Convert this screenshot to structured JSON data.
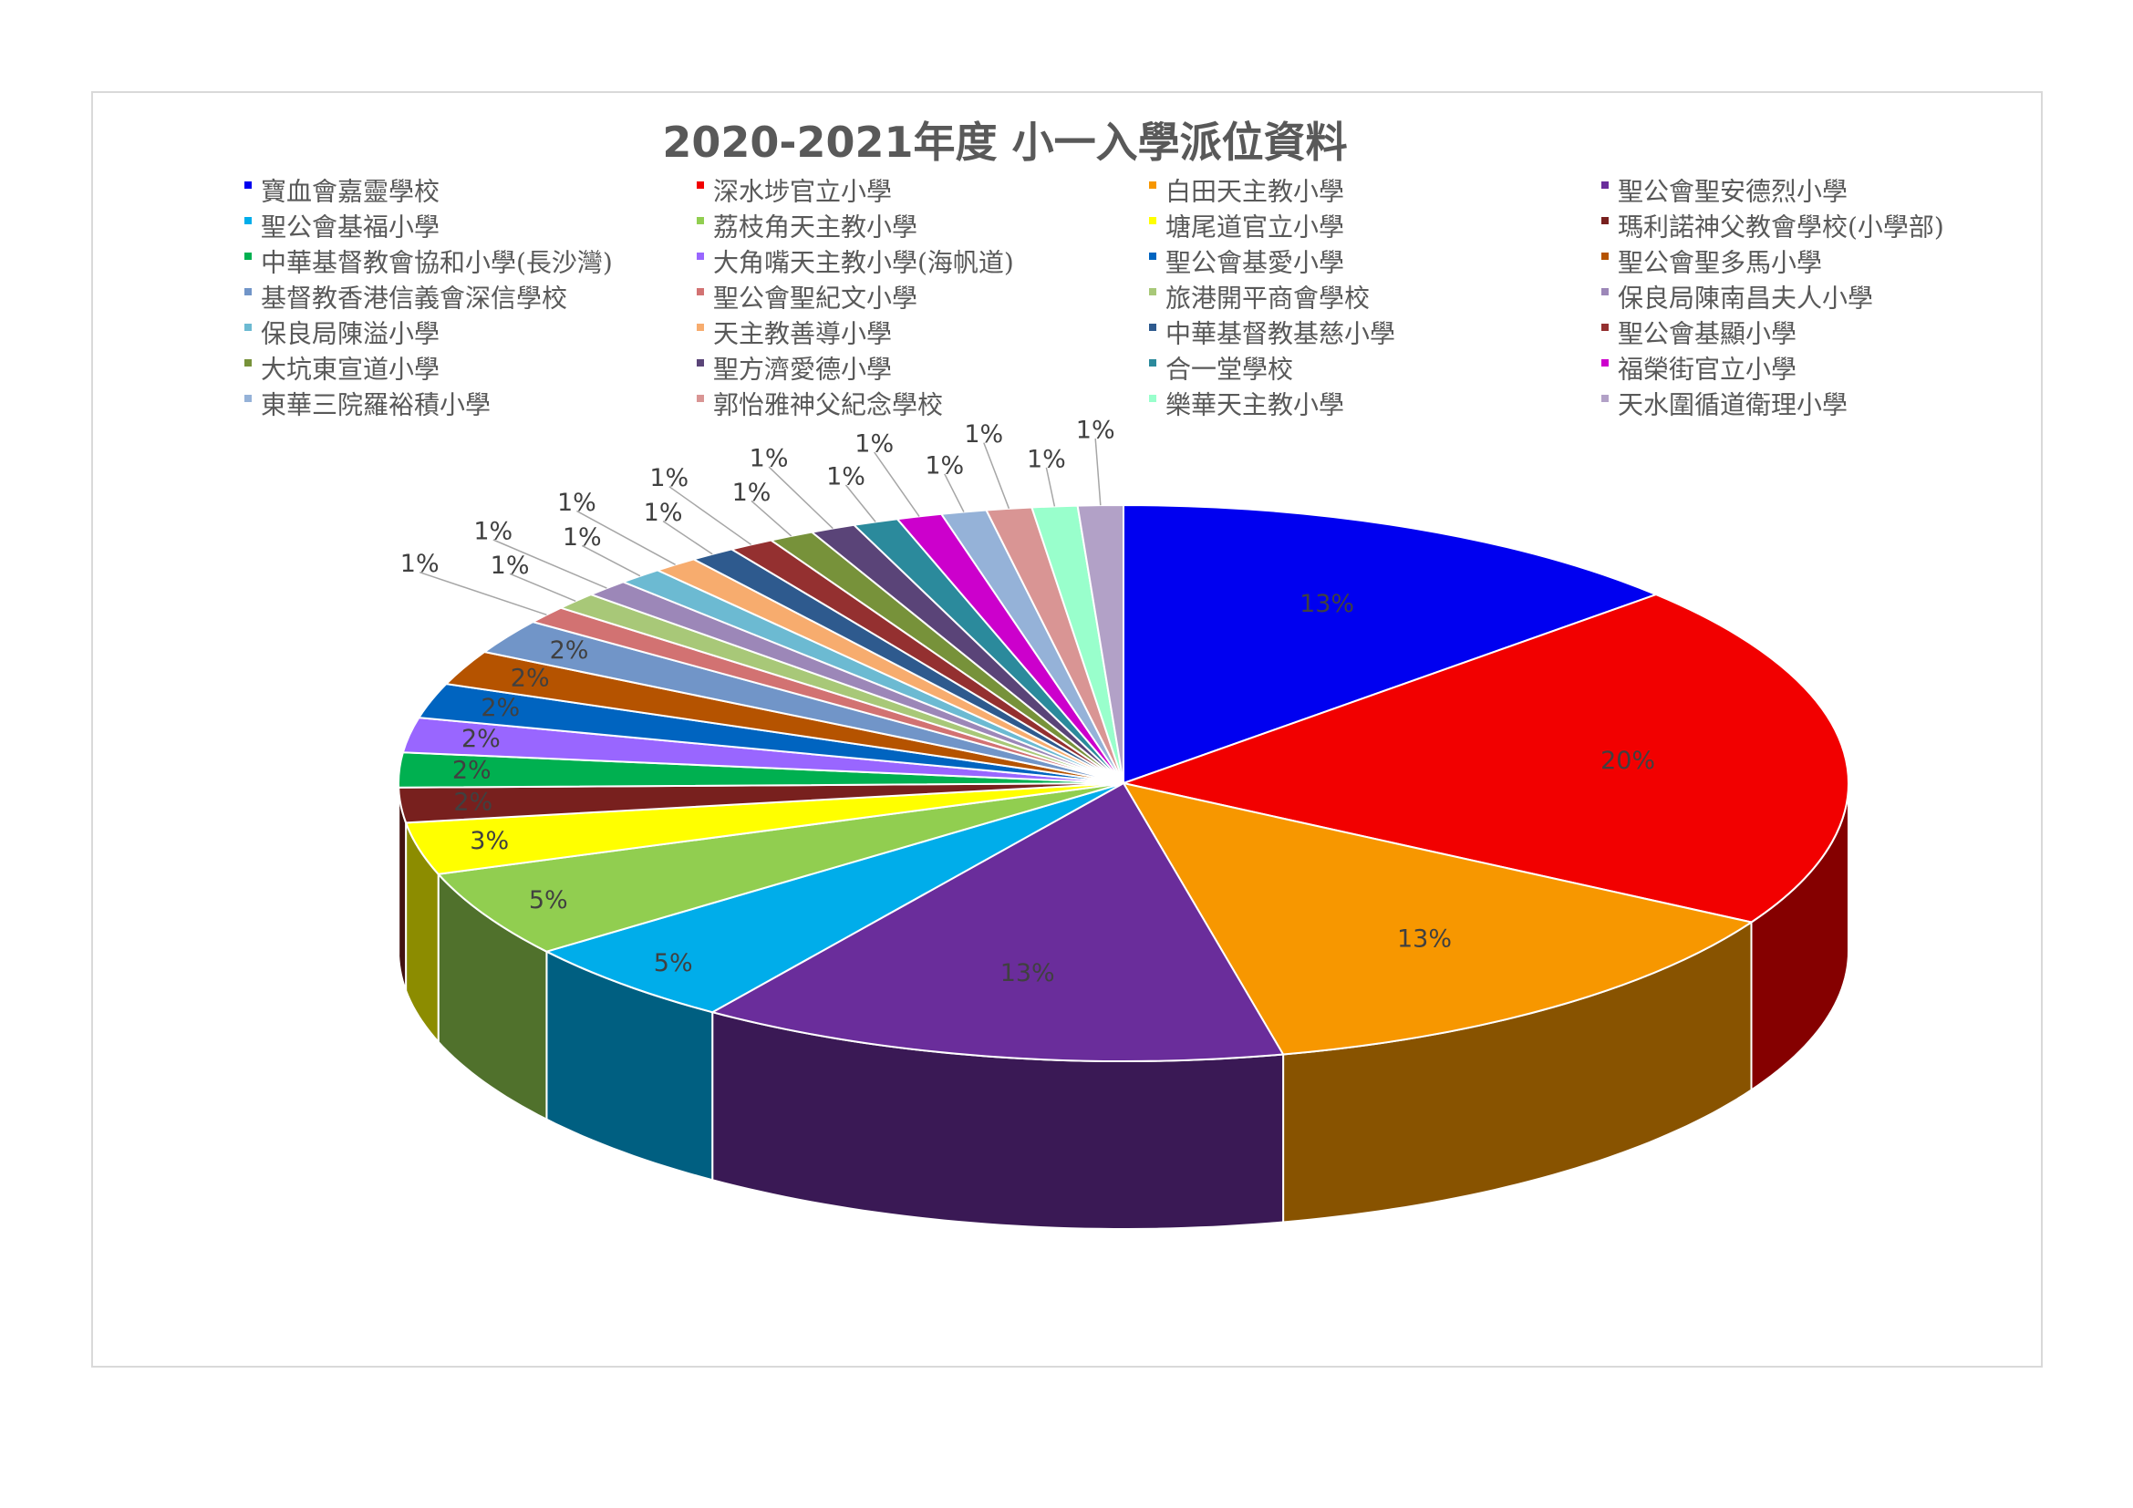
{
  "chart_data": {
    "type": "pie",
    "title": "2020-2021年度 小一入學派位資料",
    "legend_position": "top",
    "labels_shown": "percent",
    "slices": [
      {
        "name": "寶血會嘉靈學校",
        "value": 13,
        "label": "13%",
        "color": "#0000f0"
      },
      {
        "name": "深水埗官立小學",
        "value": 20,
        "label": "20%",
        "color": "#f20000"
      },
      {
        "name": "白田天主教小學",
        "value": 13,
        "label": "13%",
        "color": "#f79700"
      },
      {
        "name": "聖公會聖安德烈小學",
        "value": 13,
        "label": "13%",
        "color": "#6a2d9b"
      },
      {
        "name": "聖公會基福小學",
        "value": 5,
        "label": "5%",
        "color": "#00adea"
      },
      {
        "name": "荔枝角天主教小學",
        "value": 5,
        "label": "5%",
        "color": "#91ce50"
      },
      {
        "name": "塘尾道官立小學",
        "value": 3,
        "label": "3%",
        "color": "#ffff00"
      },
      {
        "name": "瑪利諾神父教會學校(小學部)",
        "value": 2,
        "label": "2%",
        "color": "#78201e"
      },
      {
        "name": "中華基督教會協和小學(長沙灣)",
        "value": 2,
        "label": "2%",
        "color": "#00b050"
      },
      {
        "name": "大角嘴天主教小學(海帆道)",
        "value": 2,
        "label": "2%",
        "color": "#9966ff"
      },
      {
        "name": "聖公會基愛小學",
        "value": 2,
        "label": "2%",
        "color": "#0064c0"
      },
      {
        "name": "聖公會聖多馬小學",
        "value": 2,
        "label": "2%",
        "color": "#b55300"
      },
      {
        "name": "基督教香港信義會深信學校",
        "value": 2,
        "label": "2%",
        "color": "#7195c8"
      },
      {
        "name": "聖公會聖紀文小學",
        "value": 1,
        "label": "1%",
        "color": "#d27272"
      },
      {
        "name": "旅港開平商會學校",
        "value": 1,
        "label": "1%",
        "color": "#a8c878"
      },
      {
        "name": "保良局陳南昌夫人小學",
        "value": 1,
        "label": "1%",
        "color": "#9c87b8"
      },
      {
        "name": "保良局陳溢小學",
        "value": 1,
        "label": "1%",
        "color": "#6cbad2"
      },
      {
        "name": "天主教善導小學",
        "value": 1,
        "label": "1%",
        "color": "#f7ac6e"
      },
      {
        "name": "中華基督教基慈小學",
        "value": 1,
        "label": "1%",
        "color": "#2e5a8e"
      },
      {
        "name": "聖公會基顯小學",
        "value": 1,
        "label": "1%",
        "color": "#943030"
      },
      {
        "name": "大坑東宣道小學",
        "value": 1,
        "label": "1%",
        "color": "#77923a"
      },
      {
        "name": "聖方濟愛德小學",
        "value": 1,
        "label": "1%",
        "color": "#5a4478"
      },
      {
        "name": "合一堂學校",
        "value": 1,
        "label": "1%",
        "color": "#2b8a9c"
      },
      {
        "name": "福榮街官立小學",
        "value": 1,
        "label": "1%",
        "color": "#cc00cc"
      },
      {
        "name": "東華三院羅裕積小學",
        "value": 1,
        "label": "1%",
        "color": "#95b2d8"
      },
      {
        "name": "郭怡雅神父紀念學校",
        "value": 1,
        "label": "1%",
        "color": "#d99594"
      },
      {
        "name": "樂華天主教小學",
        "value": 1,
        "label": "1%",
        "color": "#99ffcc"
      },
      {
        "name": "天水圍循道衛理小學",
        "value": 1,
        "label": "1%",
        "color": "#b2a1c7"
      }
    ]
  }
}
